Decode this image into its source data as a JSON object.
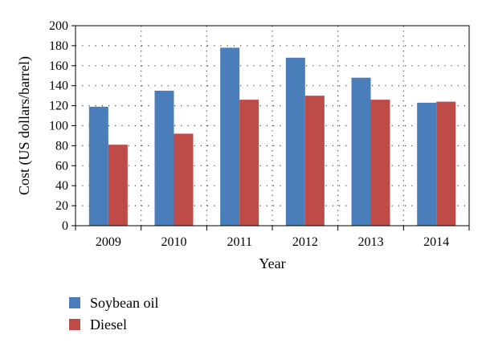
{
  "chart_data": {
    "type": "bar",
    "title": "",
    "xlabel": "Year",
    "ylabel": "Cost (US dollars/barrel)",
    "categories": [
      "2009",
      "2010",
      "2011",
      "2012",
      "2013",
      "2014"
    ],
    "series": [
      {
        "name": "Soybean oil",
        "values": [
          119,
          135,
          178,
          168,
          148,
          123
        ],
        "color": "#4a7ebb"
      },
      {
        "name": "Diesel",
        "values": [
          81,
          92,
          126,
          130,
          126,
          124
        ],
        "color": "#be4b48"
      }
    ],
    "ylim": [
      0,
      200
    ],
    "yticks": [
      0,
      20,
      40,
      60,
      80,
      100,
      120,
      140,
      160,
      180,
      200
    ],
    "grid": true,
    "legend_position": "bottom-left"
  }
}
